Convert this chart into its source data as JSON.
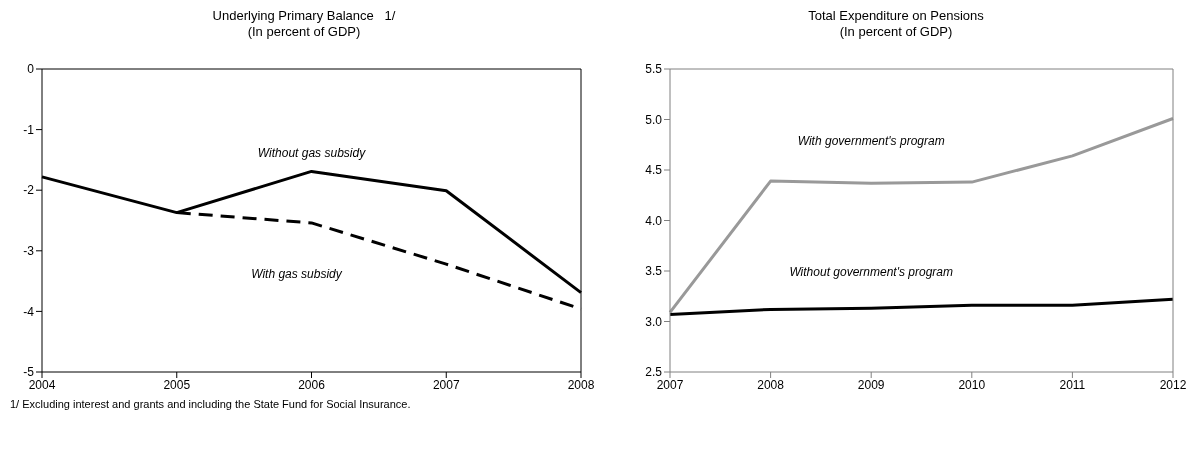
{
  "chart_data": [
    {
      "type": "line",
      "title": "Underlying Primary Balance   1/",
      "subtitle": "(In percent of GDP)",
      "categories": [
        "2004",
        "2005",
        "2006",
        "2007",
        "2008"
      ],
      "series": [
        {
          "name": "Without gas  subsidy",
          "color": "#000000",
          "values": [
            -1.78,
            -2.37,
            -1.69,
            -2.01,
            -3.69
          ]
        },
        {
          "name": "With gas subsidy",
          "color": "#000000",
          "line_style": "dashed",
          "values": [
            null,
            -2.37,
            -2.54,
            -3.22,
            -3.96
          ]
        }
      ],
      "ylim": [
        -5,
        0
      ],
      "yticks": [
        -5,
        -4,
        -3,
        -2,
        -1,
        0
      ],
      "grid": false,
      "legend": false,
      "marker": "none",
      "annotations": [
        "1/ Excluding interest and grants and including the State Fund for Social Insurance."
      ]
    },
    {
      "type": "line",
      "title": "Total Expenditure on Pensions",
      "subtitle": "(In percent of GDP)",
      "categories": [
        "2007",
        "2008",
        "2009",
        "2010",
        "2011",
        "2012"
      ],
      "series": [
        {
          "name": "With government's program",
          "color": "#999999",
          "values": [
            3.09,
            4.39,
            4.37,
            4.38,
            4.64,
            5.01
          ]
        },
        {
          "name": "Without government's program",
          "color": "#000000",
          "values": [
            3.07,
            3.12,
            3.13,
            3.16,
            3.16,
            3.22
          ]
        }
      ],
      "ylim": [
        2.5,
        5.5
      ],
      "yticks": [
        {
          "value": 2.5,
          "label": "2.5"
        },
        {
          "value": 3,
          "label": "3.0"
        },
        {
          "value": 3.5,
          "label": "3.5"
        },
        {
          "value": 4,
          "label": "4.0"
        },
        {
          "value": 4.5,
          "label": "4.5"
        },
        {
          "value": 5,
          "label": "5.0"
        },
        {
          "value": 5.5,
          "label": "5.5"
        }
      ],
      "grid": false,
      "legend": false,
      "marker": "none"
    }
  ]
}
